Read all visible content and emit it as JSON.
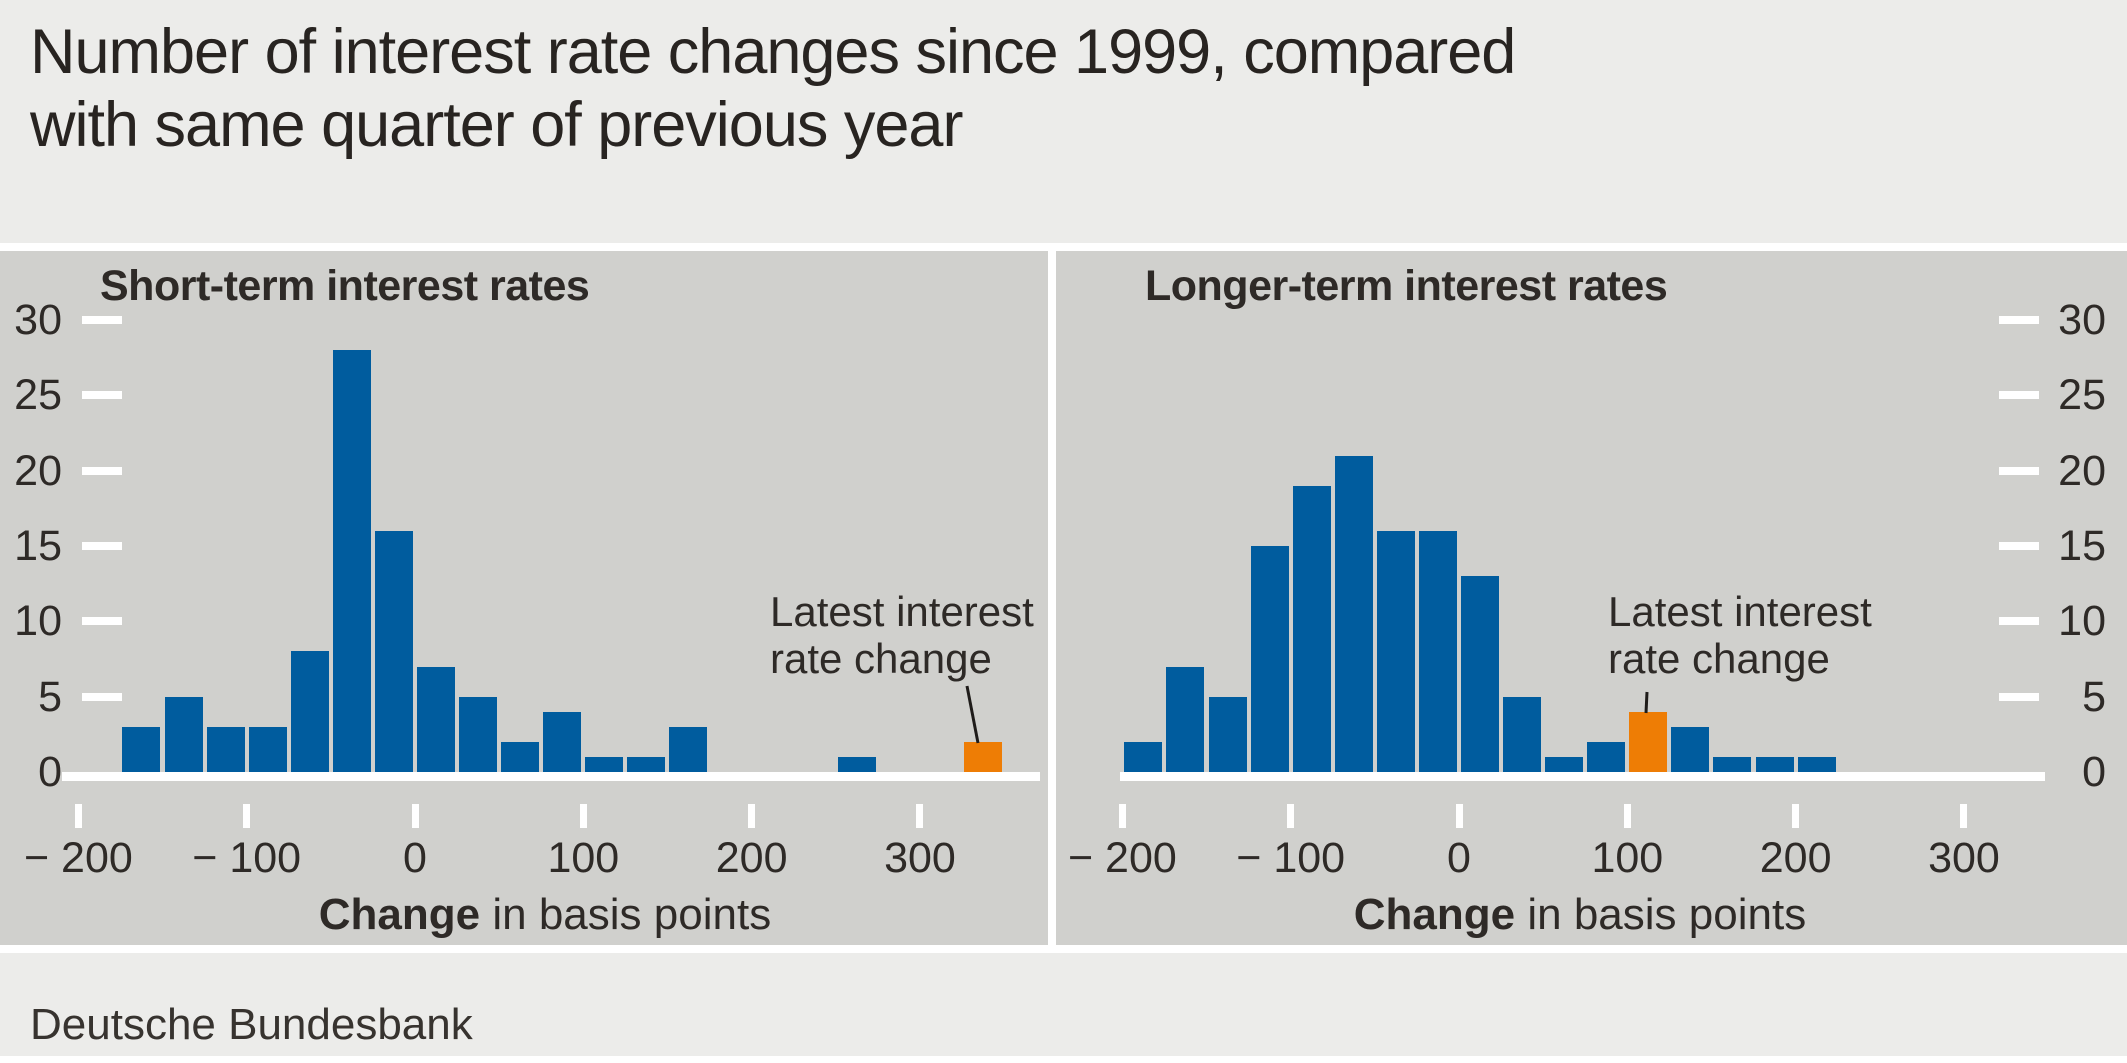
{
  "header": {
    "title_line1": "Number of interest rate changes since 1999, compared",
    "title_line2": "with same quarter of previous year"
  },
  "footer": {
    "source": "Deutsche Bundesbank"
  },
  "colors": {
    "bar_blue": "#005c9e",
    "bar_orange": "#ee7d05",
    "panel_bg": "#d0d0cd",
    "page_bg": "#ececea",
    "text": "#2e2a27",
    "axis_white": "#ffffff",
    "leader_line": "#1f1c1a"
  },
  "annotation": {
    "line1": "Latest interest",
    "line2": "rate change"
  },
  "x_axis_title": {
    "bold": "Change",
    "regular": " in basis points"
  },
  "chart_data": [
    {
      "type": "bar",
      "title": "Short-term interest rates",
      "y_axis_side": "left",
      "bin_width_bp": 25,
      "ylim": [
        0,
        30
      ],
      "y_ticks": [
        0,
        5,
        10,
        15,
        20,
        25,
        30
      ],
      "x_ticks": [
        {
          "value": -200,
          "label": "− 200"
        },
        {
          "value": -100,
          "label": "− 100"
        },
        {
          "value": 0,
          "label": "0"
        },
        {
          "value": 100,
          "label": "100"
        },
        {
          "value": 200,
          "label": "200"
        },
        {
          "value": 300,
          "label": "300"
        }
      ],
      "bars": [
        {
          "from_bp": -175,
          "count": 3
        },
        {
          "from_bp": -150,
          "count": 5
        },
        {
          "from_bp": -125,
          "count": 3
        },
        {
          "from_bp": -100,
          "count": 3
        },
        {
          "from_bp": -75,
          "count": 8
        },
        {
          "from_bp": -50,
          "count": 28
        },
        {
          "from_bp": -25,
          "count": 16
        },
        {
          "from_bp": 0,
          "count": 7
        },
        {
          "from_bp": 25,
          "count": 5
        },
        {
          "from_bp": 50,
          "count": 2
        },
        {
          "from_bp": 75,
          "count": 4
        },
        {
          "from_bp": 100,
          "count": 1
        },
        {
          "from_bp": 125,
          "count": 1
        },
        {
          "from_bp": 150,
          "count": 3
        },
        {
          "from_bp": 250,
          "count": 1
        },
        {
          "from_bp": 325,
          "count": 2,
          "highlight": true
        }
      ]
    },
    {
      "type": "bar",
      "title": "Longer-term interest rates",
      "y_axis_side": "right",
      "bin_width_bp": 25,
      "ylim": [
        0,
        30
      ],
      "y_ticks": [
        0,
        5,
        10,
        15,
        20,
        25,
        30
      ],
      "x_ticks": [
        {
          "value": -200,
          "label": "− 200"
        },
        {
          "value": -100,
          "label": "− 100"
        },
        {
          "value": 0,
          "label": "0"
        },
        {
          "value": 100,
          "label": "100"
        },
        {
          "value": 200,
          "label": "200"
        },
        {
          "value": 300,
          "label": "300"
        }
      ],
      "bars": [
        {
          "from_bp": -200,
          "count": 2
        },
        {
          "from_bp": -175,
          "count": 7
        },
        {
          "from_bp": -150,
          "count": 5
        },
        {
          "from_bp": -125,
          "count": 15
        },
        {
          "from_bp": -100,
          "count": 19
        },
        {
          "from_bp": -75,
          "count": 21
        },
        {
          "from_bp": -50,
          "count": 16
        },
        {
          "from_bp": -25,
          "count": 16
        },
        {
          "from_bp": 0,
          "count": 13
        },
        {
          "from_bp": 25,
          "count": 5
        },
        {
          "from_bp": 50,
          "count": 1
        },
        {
          "from_bp": 75,
          "count": 2
        },
        {
          "from_bp": 100,
          "count": 4,
          "highlight": true
        },
        {
          "from_bp": 125,
          "count": 3
        },
        {
          "from_bp": 150,
          "count": 1
        },
        {
          "from_bp": 175,
          "count": 1
        },
        {
          "from_bp": 200,
          "count": 1
        }
      ]
    }
  ]
}
